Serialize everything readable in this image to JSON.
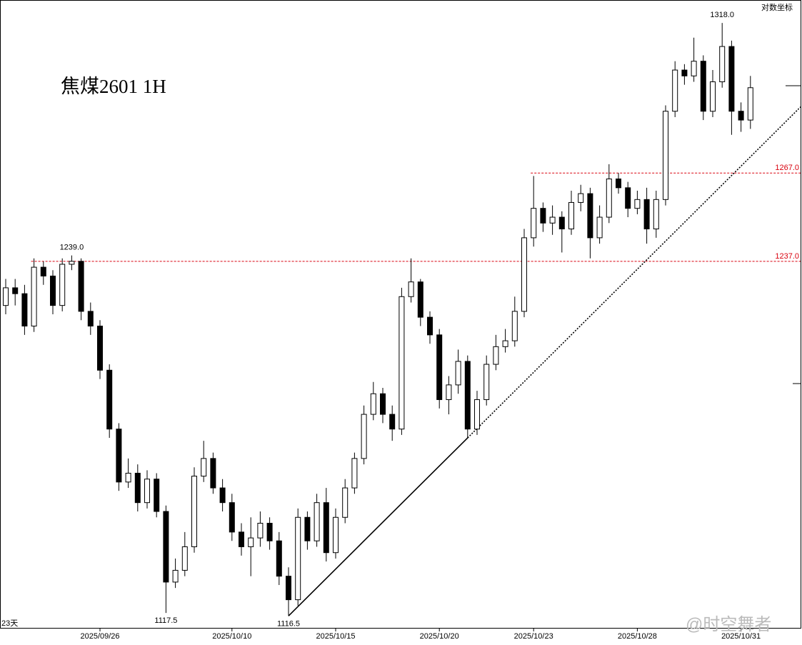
{
  "chart_data": {
    "type": "candlestick",
    "title": "焦煤2601  1H",
    "scale_label": "对数坐标",
    "log_scale": true,
    "period_label": "23天",
    "watermark": "@时空舞者",
    "ylim": [
      1112.2,
      1325.8
    ],
    "categories": [
      null,
      null,
      null,
      null,
      null,
      null,
      null,
      null,
      null,
      null,
      "2025/09/26",
      null,
      null,
      null,
      null,
      null,
      null,
      null,
      null,
      null,
      null,
      null,
      null,
      null,
      "2025/10/10",
      null,
      null,
      null,
      null,
      null,
      null,
      null,
      null,
      null,
      null,
      "2025/10/15",
      null,
      null,
      null,
      null,
      null,
      null,
      null,
      null,
      null,
      null,
      "2025/10/20",
      null,
      null,
      null,
      null,
      null,
      null,
      null,
      null,
      null,
      "2025/10/23",
      null,
      null,
      null,
      null,
      null,
      null,
      null,
      null,
      null,
      null,
      "2025/10/28",
      null,
      null,
      null,
      null,
      null,
      null,
      null,
      null,
      null,
      null,
      "2025/10/31",
      null
    ],
    "open": [
      1222,
      1228,
      1226,
      1215,
      1235,
      1232,
      1222,
      1236,
      1237,
      1220,
      1215,
      1200,
      1180,
      1162,
      1165,
      1155,
      1163,
      1152,
      1128,
      1132,
      1140,
      1164,
      1170,
      1160,
      1155,
      1145,
      1140,
      1143,
      1148,
      1142,
      1130,
      1122,
      1150,
      1142,
      1155,
      1138,
      1150,
      1160,
      1170,
      1185,
      1192,
      1185,
      1180,
      1225,
      1230,
      1218,
      1212,
      1190,
      1195,
      1203,
      1180,
      1190,
      1202,
      1208,
      1210,
      1220,
      1245,
      1255,
      1250,
      1252,
      1248,
      1257,
      1260,
      1245,
      1252,
      1265,
      1262,
      1255,
      1258,
      1248,
      1258,
      1288,
      1302,
      1300,
      1305,
      1288,
      1298,
      1310,
      1288,
      1285
    ],
    "high": [
      1231,
      1231,
      1229,
      1238,
      1237,
      1234,
      1238,
      1239,
      1238,
      1223,
      1217,
      1202,
      1182,
      1170,
      1168,
      1166,
      1165,
      1154,
      1136,
      1145,
      1167,
      1176,
      1172,
      1163,
      1158,
      1148,
      1150,
      1152,
      1150,
      1145,
      1133,
      1153,
      1152,
      1158,
      1160,
      1153,
      1163,
      1172,
      1188,
      1196,
      1194,
      1188,
      1228,
      1238,
      1231,
      1220,
      1214,
      1198,
      1207,
      1205,
      1193,
      1205,
      1212,
      1214,
      1225,
      1248,
      1266,
      1257,
      1256,
      1254,
      1261,
      1263,
      1262,
      1256,
      1270,
      1267,
      1264,
      1261,
      1262,
      1261,
      1290,
      1305,
      1304,
      1313,
      1307,
      1302,
      1318,
      1312,
      1291,
      1300
    ],
    "low": [
      1219,
      1222,
      1212,
      1213,
      1229,
      1219,
      1220,
      1234,
      1217,
      1212,
      1197,
      1177,
      1159,
      1160,
      1152,
      1153,
      1150,
      1117.5,
      1126,
      1130,
      1138,
      1162,
      1158,
      1152,
      1142,
      1137,
      1130,
      1140,
      1139,
      1127,
      1116.5,
      1120,
      1139,
      1140,
      1135,
      1136,
      1148,
      1158,
      1168,
      1183,
      1182,
      1176,
      1178,
      1223,
      1215,
      1209,
      1187,
      1185,
      1192,
      1177,
      1178,
      1188,
      1200,
      1206,
      1208,
      1218,
      1242,
      1247,
      1246,
      1240,
      1246,
      1254,
      1238,
      1243,
      1250,
      1260,
      1252,
      1253,
      1243,
      1245,
      1256,
      1286,
      1297,
      1298,
      1285,
      1286,
      1296,
      1280,
      1281,
      1282
    ],
    "close": [
      1228,
      1226,
      1215,
      1235,
      1232,
      1222,
      1236,
      1237,
      1220,
      1215,
      1200,
      1180,
      1162,
      1165,
      1155,
      1163,
      1152,
      1128,
      1132,
      1140,
      1164,
      1170,
      1160,
      1155,
      1145,
      1140,
      1143,
      1148,
      1142,
      1130,
      1122,
      1150,
      1142,
      1155,
      1138,
      1150,
      1160,
      1170,
      1185,
      1192,
      1185,
      1180,
      1225,
      1230,
      1218,
      1212,
      1190,
      1195,
      1203,
      1180,
      1190,
      1202,
      1208,
      1210,
      1220,
      1245,
      1255,
      1250,
      1252,
      1248,
      1257,
      1260,
      1245,
      1252,
      1265,
      1262,
      1255,
      1258,
      1248,
      1258,
      1288,
      1302,
      1300,
      1305,
      1288,
      1298,
      1310,
      1288,
      1285,
      1296
    ],
    "peak_labels": [
      {
        "value": 1318,
        "label": "1318.0",
        "kind": "high"
      },
      {
        "value": 1239,
        "label": "1239.0",
        "kind": "high"
      },
      {
        "value": 1117.5,
        "label": "1117.5",
        "kind": "low"
      },
      {
        "value": 1116.5,
        "label": "1116.5",
        "kind": "low"
      }
    ],
    "levels": [
      {
        "value": 1267,
        "label": "1267.0",
        "color": "#d9000d"
      },
      {
        "value": 1237,
        "label": "1237.0",
        "color": "#d9000d"
      }
    ]
  }
}
